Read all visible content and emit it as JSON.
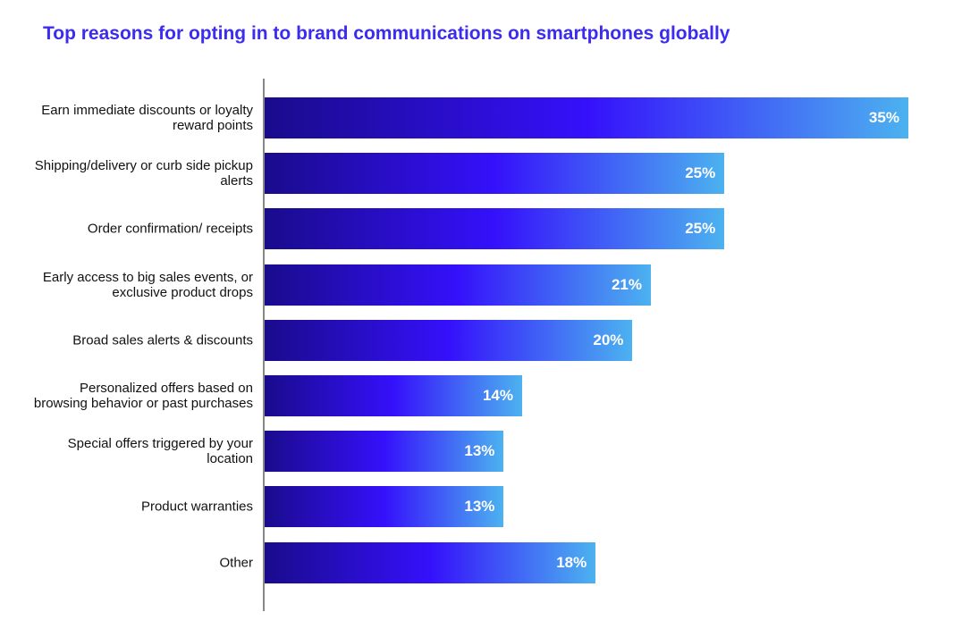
{
  "chart_data": {
    "type": "bar",
    "orientation": "horizontal",
    "title": "Top reasons for opting in to brand communications on smartphones globally",
    "categories": [
      "Earn immediate discounts or loyalty reward points",
      "Shipping/delivery or curb side pickup alerts",
      "Order confirmation/ receipts",
      "Early access to big sales events, or exclusive product drops",
      "Broad sales alerts & discounts",
      "Personalized offers based on browsing behavior or past purchases",
      "Special offers triggered by your location",
      "Product warranties",
      "Other"
    ],
    "values": [
      35,
      25,
      25,
      21,
      20,
      14,
      13,
      13,
      18
    ],
    "value_labels": [
      "35%",
      "25%",
      "25%",
      "21%",
      "20%",
      "14%",
      "13%",
      "13%",
      "18%"
    ],
    "colors": [
      "#1a0b8c",
      "#3510fb",
      "#4cb2f0"
    ]
  }
}
